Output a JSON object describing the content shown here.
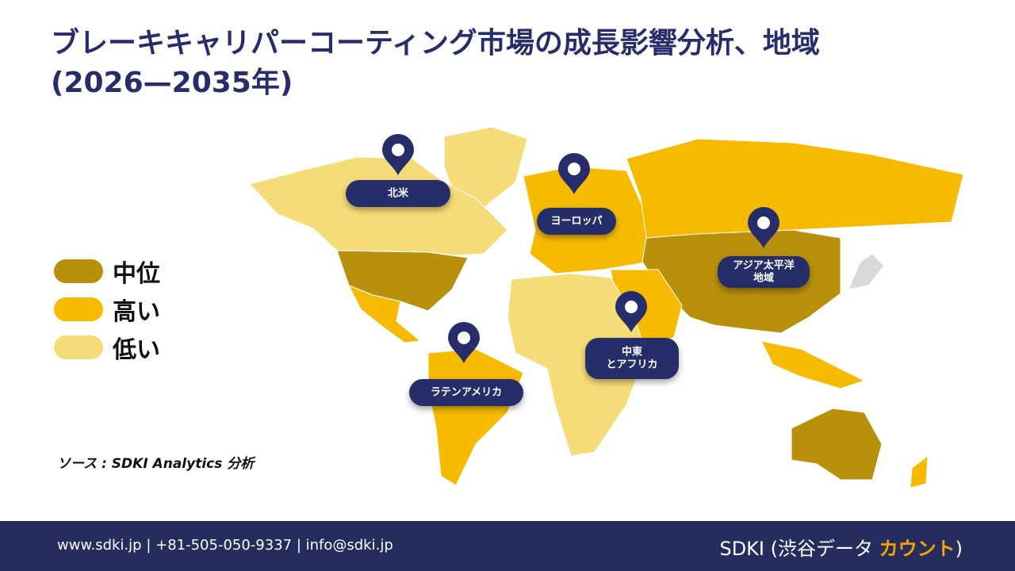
{
  "header": {
    "title_lines": [
      "ブレーキキャリパーコーティング市場の成長影響分析、地域",
      "(2026—2035年)"
    ]
  },
  "legend": [
    {
      "label": "中位",
      "color": "#b8900c"
    },
    {
      "label": "高い",
      "color": "#f6bb00"
    },
    {
      "label": "低い",
      "color": "#f6dc78"
    }
  ],
  "regions": [
    {
      "lines": [
        "北米"
      ]
    },
    {
      "lines": [
        "ヨーロッパ"
      ]
    },
    {
      "lines": [
        "アジア太平洋",
        "地域"
      ]
    },
    {
      "lines": [
        "中東",
        "とアフリカ"
      ]
    },
    {
      "lines": [
        "ラテンアメリカ"
      ]
    }
  ],
  "source": "ソース : SDKI Analytics 分析",
  "footer": {
    "contact": "www.sdki.jp | +81-505-050-9337 | info@sdki.jp",
    "brand": "SDKI (渋谷データ",
    "brand_accent": "カウント",
    "brand_end": ")"
  }
}
